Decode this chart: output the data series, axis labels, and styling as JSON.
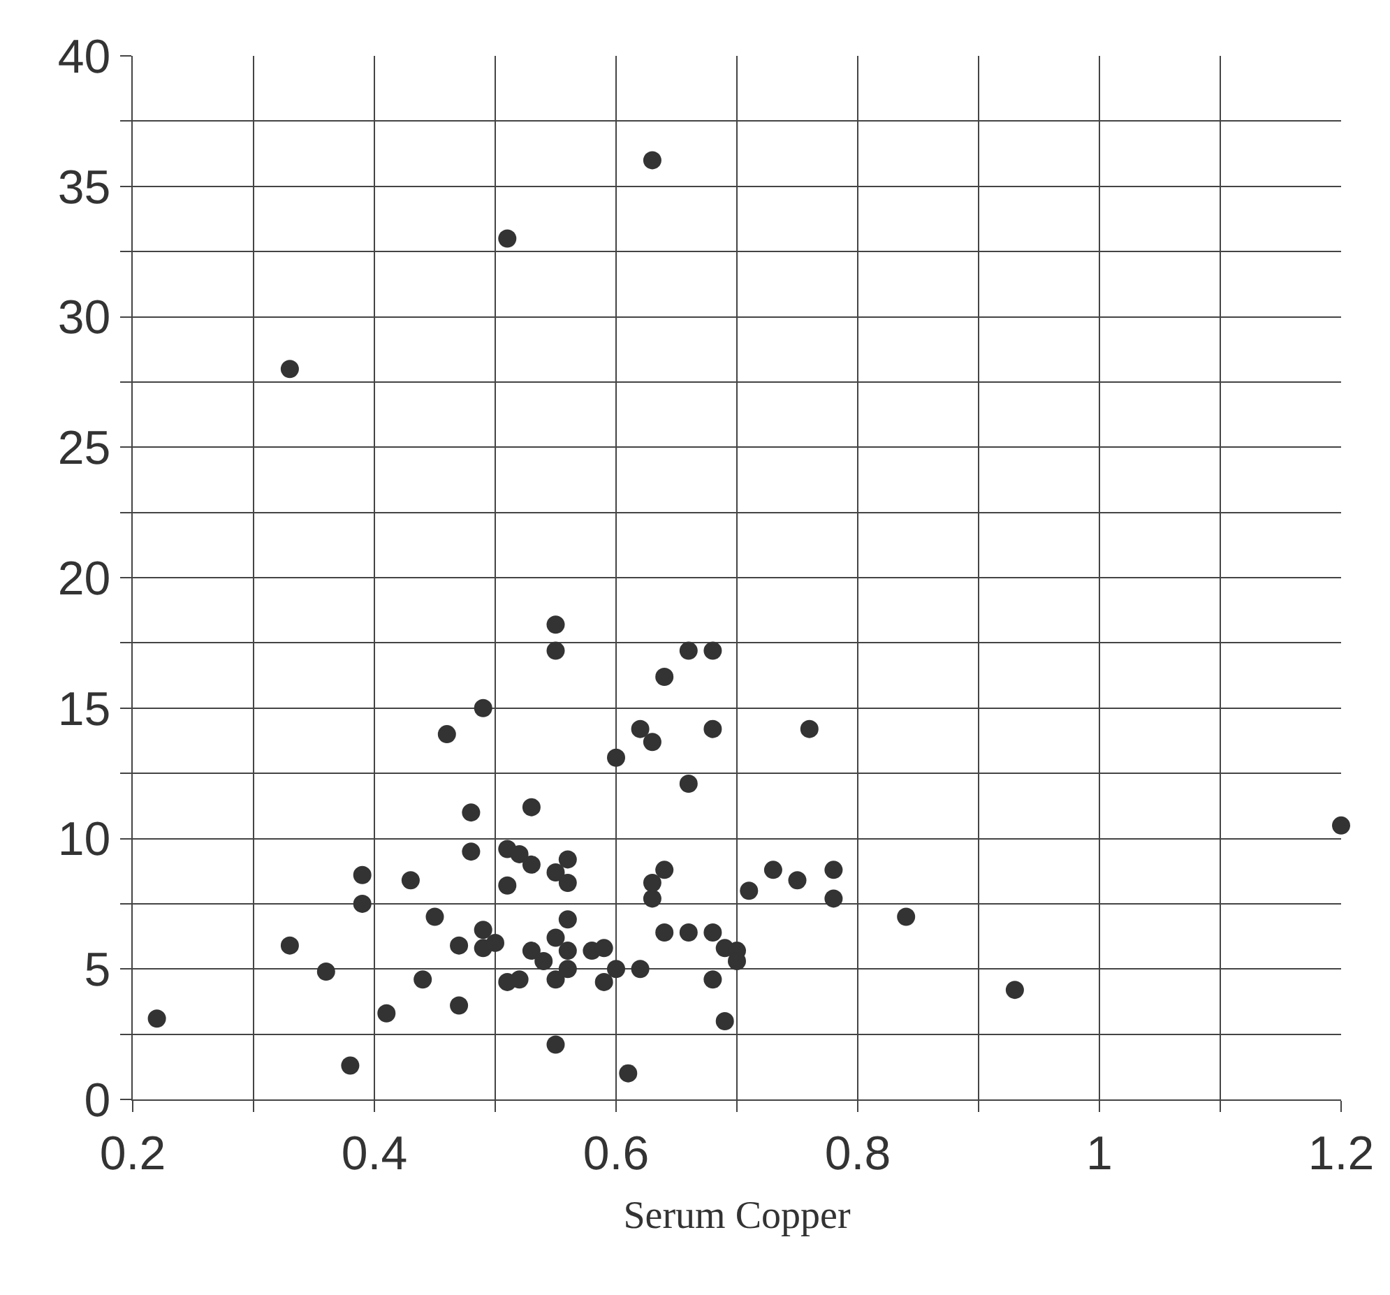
{
  "chart_data": {
    "type": "scatter",
    "xlabel": "Serum Copper",
    "x": [
      0.33,
      0.51,
      0.63,
      0.22,
      0.33,
      0.36,
      0.38,
      0.39,
      0.39,
      0.41,
      0.43,
      0.44,
      0.45,
      0.46,
      0.47,
      0.47,
      0.48,
      0.48,
      0.49,
      0.49,
      0.49,
      0.5,
      0.51,
      0.51,
      0.51,
      0.52,
      0.52,
      0.53,
      0.53,
      0.53,
      0.54,
      0.55,
      0.55,
      0.55,
      0.55,
      0.55,
      0.55,
      0.56,
      0.56,
      0.56,
      0.56,
      0.56,
      0.58,
      0.59,
      0.59,
      0.6,
      0.6,
      0.61,
      0.62,
      0.62,
      0.63,
      0.63,
      0.63,
      0.64,
      0.64,
      0.64,
      0.66,
      0.66,
      0.66,
      0.68,
      0.68,
      0.68,
      0.68,
      0.69,
      0.69,
      0.7,
      0.7,
      0.71,
      0.73,
      0.75,
      0.78,
      0.78,
      0.84,
      0.93,
      1.2,
      0.76
    ],
    "series": [
      {
        "color": "#333333",
        "values": [
          28,
          33,
          36,
          3.1,
          5.9,
          4.9,
          1.3,
          8.6,
          7.5,
          3.3,
          8.4,
          4.6,
          7,
          14,
          5.9,
          3.6,
          11,
          9.5,
          15,
          6.5,
          5.8,
          6,
          8.2,
          9.6,
          4.5,
          4.6,
          9.4,
          11.2,
          9,
          5.7,
          5.3,
          18.2,
          17.2,
          2.1,
          4.6,
          8.7,
          6.2,
          9.2,
          8.3,
          6.9,
          5.7,
          5,
          5.7,
          4.5,
          5.8,
          13.1,
          5,
          1,
          5,
          14.2,
          13.7,
          7.7,
          8.3,
          16.2,
          8.8,
          6.4,
          17.2,
          12.1,
          6.4,
          17.2,
          14.2,
          6.4,
          4.6,
          3,
          5.8,
          5.7,
          5.3,
          8,
          8.8,
          8.4,
          8.8,
          7.7,
          7,
          4.2,
          10.5,
          14.2
        ]
      }
    ],
    "xlim": [
      0.2,
      1.2
    ],
    "xticks": [
      0.2,
      {
        "value": 0.3,
        "label": null
      },
      0.4,
      {
        "value": 0.5,
        "label": null
      },
      0.6,
      {
        "value": 0.7,
        "label": null
      },
      0.8,
      {
        "value": 0.9,
        "label": null
      },
      1,
      {
        "value": 1.1,
        "label": null
      },
      1.2
    ],
    "ylim": [
      0,
      40
    ],
    "yticks": [
      0,
      {
        "value": 2.5,
        "label": null
      },
      5,
      {
        "value": 7.5,
        "label": null
      },
      10,
      {
        "value": 12.5,
        "label": null
      },
      15,
      {
        "value": 17.5,
        "label": null
      },
      20,
      {
        "value": 22.5,
        "label": null
      },
      25,
      {
        "value": 27.5,
        "label": null
      },
      30,
      {
        "value": 32.5,
        "label": null
      },
      35,
      {
        "value": 37.5,
        "label": null
      },
      40
    ],
    "grid": true,
    "marker": "circle"
  }
}
